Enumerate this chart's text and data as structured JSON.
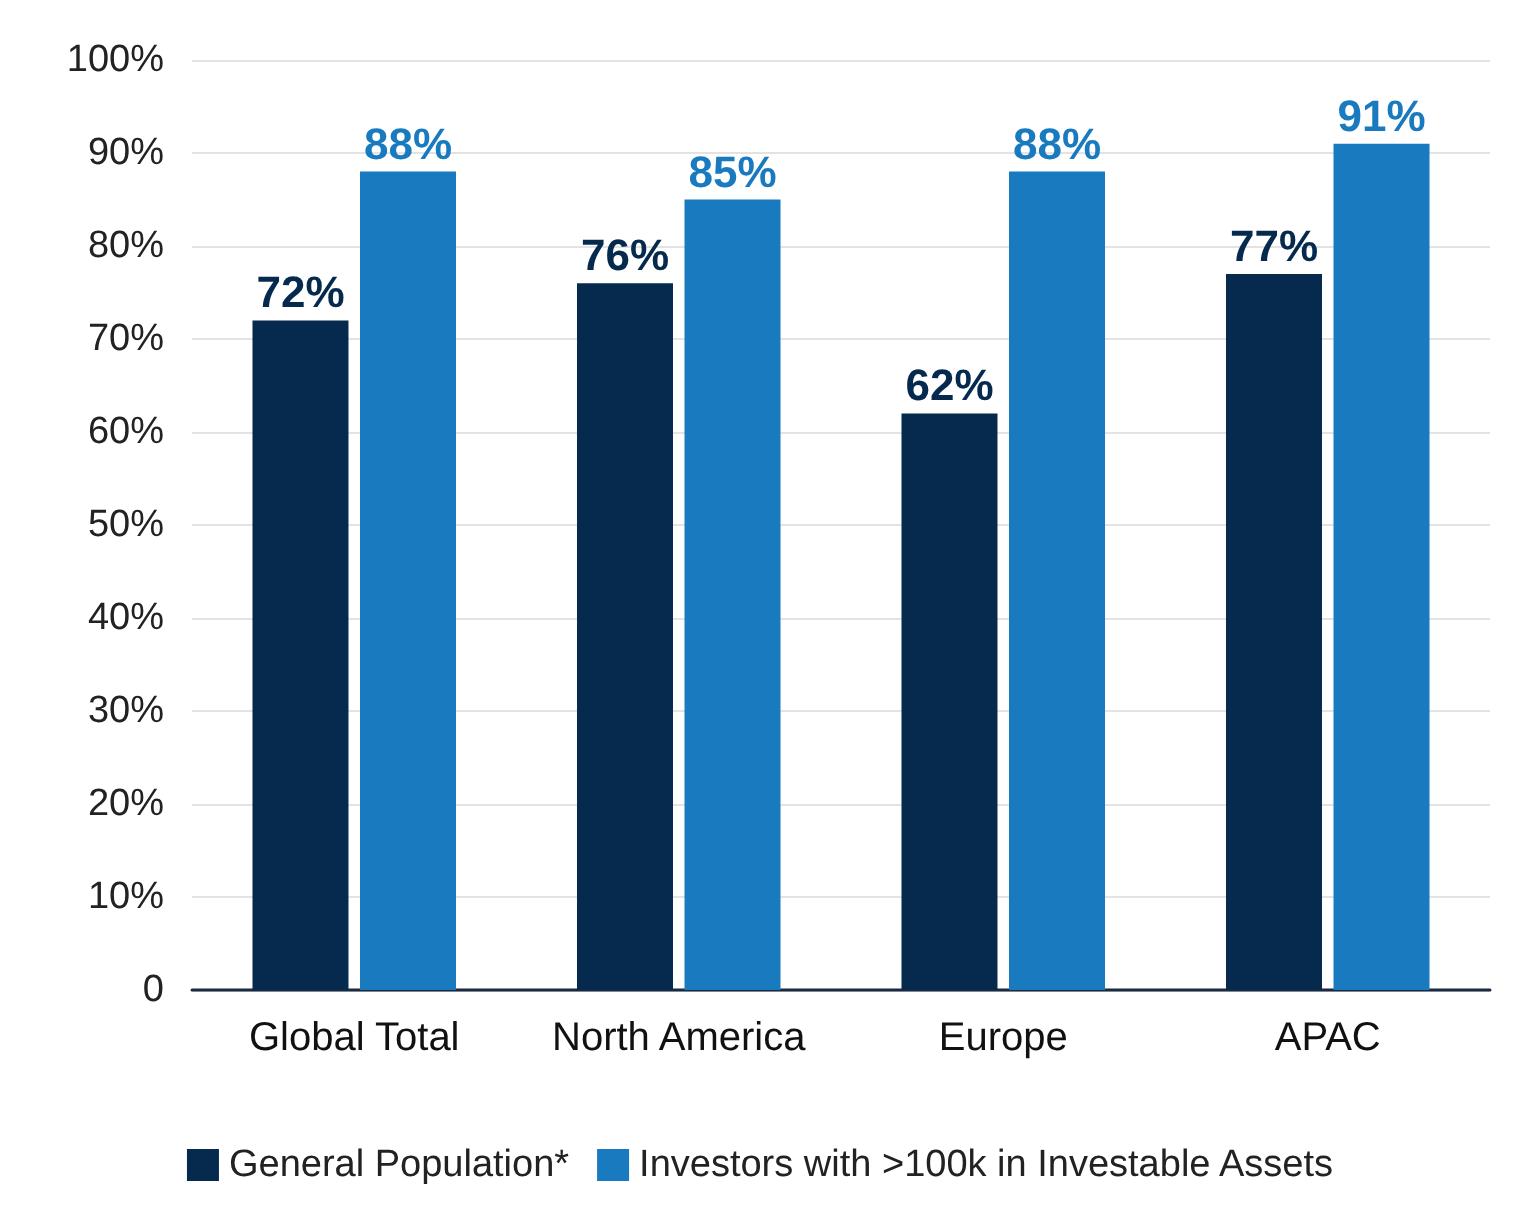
{
  "chart_data": {
    "type": "bar",
    "categories": [
      "Global Total",
      "North America",
      "Europe",
      "APAC"
    ],
    "series": [
      {
        "name": "General Population*",
        "color": "#052a4e",
        "values": [
          72,
          76,
          62,
          77
        ],
        "value_labels": [
          "72%",
          "76%",
          "62%",
          "77%"
        ]
      },
      {
        "name": "Investors with >100k in Investable Assets",
        "color": "#1a7abf",
        "values": [
          88,
          85,
          88,
          91
        ],
        "value_labels": [
          "88%",
          "85%",
          "88%",
          "91%"
        ]
      }
    ],
    "ylim": [
      0,
      100
    ],
    "yticks": [
      0,
      {
        "value": 10,
        "label": "10%"
      },
      {
        "value": 20,
        "label": "20%"
      },
      {
        "value": 30,
        "label": "30%"
      },
      {
        "value": 40,
        "label": "40%"
      },
      {
        "value": 50,
        "label": "50%"
      },
      {
        "value": 60,
        "label": "60%"
      },
      {
        "value": 70,
        "label": "70%"
      },
      {
        "value": 80,
        "label": "80%"
      },
      {
        "value": 90,
        "label": "90%"
      },
      {
        "value": 100,
        "label": "100%"
      }
    ],
    "grid": "y",
    "legend": "bottom"
  }
}
